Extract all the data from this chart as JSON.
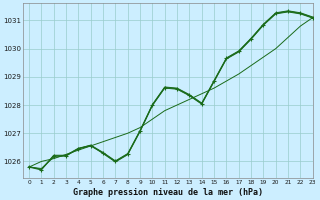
{
  "title": "Graphe pression niveau de la mer (hPa)",
  "bg_color": "#cceeff",
  "grid_color": "#99cccc",
  "line_color": "#1a6b1a",
  "xlim": [
    -0.5,
    23
  ],
  "ylim": [
    1025.4,
    1031.6
  ],
  "yticks": [
    1026,
    1027,
    1028,
    1029,
    1030,
    1031
  ],
  "xticks": [
    0,
    1,
    2,
    3,
    4,
    5,
    6,
    7,
    8,
    9,
    10,
    11,
    12,
    13,
    14,
    15,
    16,
    17,
    18,
    19,
    20,
    21,
    22,
    23
  ],
  "main_y": [
    1025.8,
    1025.7,
    1026.2,
    1026.2,
    1026.45,
    1026.55,
    1026.3,
    1026.0,
    1026.26,
    1027.08,
    1028.0,
    1028.62,
    1028.58,
    1028.35,
    1028.05,
    1028.85,
    1029.65,
    1029.9,
    1030.35,
    1030.85,
    1031.25,
    1031.32,
    1031.25,
    1031.1
  ],
  "smooth_y": [
    1025.8,
    1026.0,
    1026.1,
    1026.25,
    1026.4,
    1026.55,
    1026.7,
    1026.85,
    1027.0,
    1027.2,
    1027.5,
    1027.8,
    1028.0,
    1028.2,
    1028.4,
    1028.6,
    1028.85,
    1029.1,
    1029.4,
    1029.7,
    1030.0,
    1030.4,
    1030.8,
    1031.1
  ],
  "line2_y": [
    1025.8,
    1025.75,
    1026.15,
    1026.2,
    1026.45,
    1026.58,
    1026.32,
    1026.02,
    1026.28,
    1027.1,
    1028.02,
    1028.64,
    1028.6,
    1028.37,
    1028.07,
    1028.87,
    1029.67,
    1029.92,
    1030.37,
    1030.87,
    1031.27,
    1031.34,
    1031.27,
    1031.12
  ],
  "line3_y": [
    1025.82,
    1025.72,
    1026.22,
    1026.22,
    1026.47,
    1026.57,
    1026.28,
    1025.98,
    1026.24,
    1027.06,
    1027.98,
    1028.6,
    1028.56,
    1028.33,
    1028.03,
    1028.83,
    1029.63,
    1029.88,
    1030.33,
    1030.83,
    1031.23,
    1031.3,
    1031.23,
    1031.08
  ]
}
